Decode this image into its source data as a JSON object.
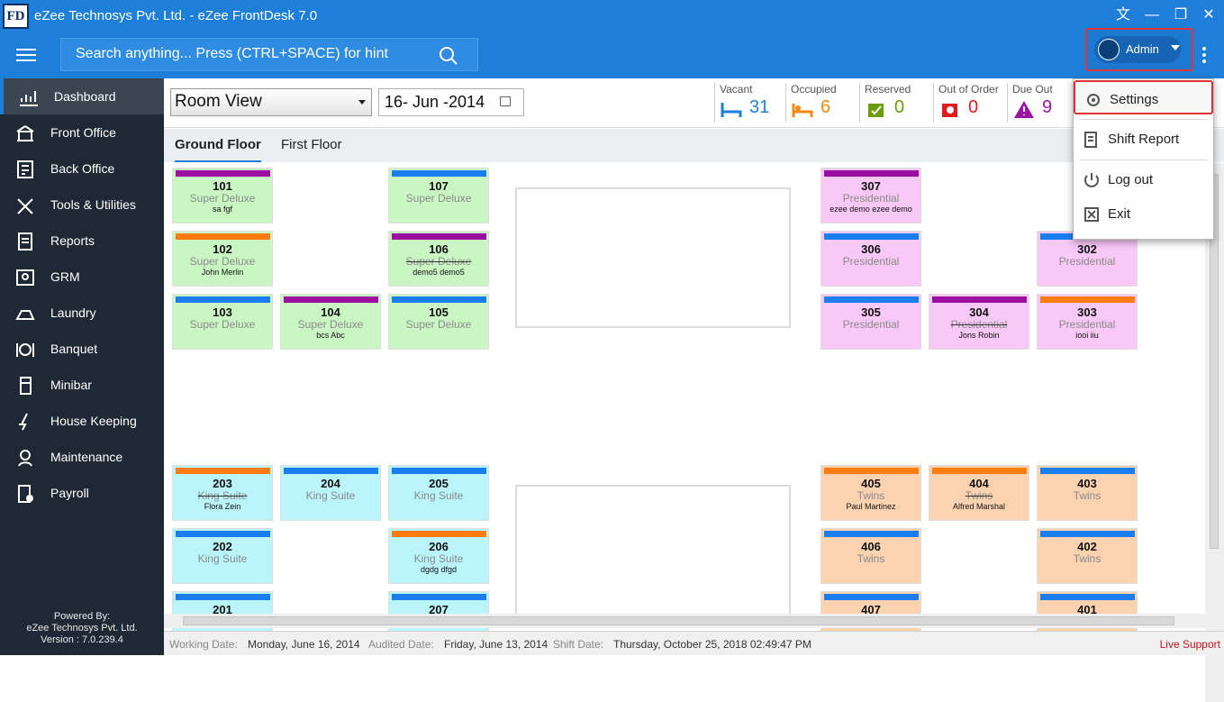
{
  "app": {
    "logo_text": "FD",
    "title": "eZee Technosys Pvt. Ltd. - eZee FrontDesk 7.0",
    "search_placeholder": "Search anything... Press (CTRL+SPACE) for hint",
    "user": "Admin"
  },
  "sidebar": {
    "items": [
      {
        "label": "Dashboard",
        "icon": "dashboard-icon"
      },
      {
        "label": "Front Office",
        "icon": "front-office-icon"
      },
      {
        "label": "Back Office",
        "icon": "back-office-icon"
      },
      {
        "label": "Tools & Utilities",
        "icon": "tools-icon"
      },
      {
        "label": "Reports",
        "icon": "reports-icon"
      },
      {
        "label": "GRM",
        "icon": "grm-icon"
      },
      {
        "label": "Laundry",
        "icon": "laundry-icon"
      },
      {
        "label": "Banquet",
        "icon": "banquet-icon"
      },
      {
        "label": "Minibar",
        "icon": "minibar-icon"
      },
      {
        "label": "House Keeping",
        "icon": "house-keeping-icon"
      },
      {
        "label": "Maintenance",
        "icon": "maintenance-icon"
      },
      {
        "label": "Payroll",
        "icon": "payroll-icon"
      }
    ],
    "powered": [
      "Powered By:",
      "eZee Technosys Pvt. Ltd.",
      "Version : 7.0.239.4"
    ]
  },
  "filters": {
    "view": "Room View",
    "date": "16- Jun -2014"
  },
  "stats": [
    {
      "label": "Vacant",
      "value": "31",
      "color": "#1e7fd9"
    },
    {
      "label": "Occupied",
      "value": "6",
      "color": "#f08a13"
    },
    {
      "label": "Reserved",
      "value": "0",
      "color": "#6a9d08"
    },
    {
      "label": "Out of Order",
      "value": "0",
      "color": "#df1d1d"
    },
    {
      "label": "Due Out",
      "value": "9",
      "color": "#9b15a3"
    }
  ],
  "tabs": [
    "Ground Floor",
    "First Floor"
  ],
  "rooms": [
    {
      "num": "101",
      "type": "Super Deluxe",
      "guest": "sa fgf",
      "bg": "green",
      "bar": "purple"
    },
    {
      "num": "107",
      "type": "Super Deluxe",
      "guest": "",
      "bg": "green",
      "bar": "blue"
    },
    {
      "num": "307",
      "type": "Presidential",
      "guest": "ezee demo ezee demo",
      "bg": "pink",
      "bar": "purple"
    },
    {
      "num": "102",
      "type": "Super Deluxe",
      "guest": "John Merlin",
      "bg": "green",
      "bar": "orange"
    },
    {
      "num": "106",
      "type": "Super Deluxe",
      "guest": "demo5 demo5",
      "bg": "green",
      "bar": "purple"
    },
    {
      "num": "306",
      "type": "Presidential",
      "guest": "",
      "bg": "pink",
      "bar": "blue"
    },
    {
      "num": "302",
      "type": "Presidential",
      "guest": "",
      "bg": "pink",
      "bar": "blue"
    },
    {
      "num": "103",
      "type": "Super Deluxe",
      "guest": "",
      "bg": "green",
      "bar": "blue"
    },
    {
      "num": "104",
      "type": "Super Deluxe",
      "guest": "bcs Abc",
      "bg": "green",
      "bar": "purple"
    },
    {
      "num": "105",
      "type": "Super Deluxe",
      "guest": "",
      "bg": "green",
      "bar": "blue"
    },
    {
      "num": "305",
      "type": "Presidential",
      "guest": "",
      "bg": "pink",
      "bar": "blue"
    },
    {
      "num": "304",
      "type": "Presidential",
      "guest": "Jons Robin",
      "bg": "pink",
      "bar": "purple"
    },
    {
      "num": "303",
      "type": "Presidential",
      "guest": "iooi iiu",
      "bg": "pink",
      "bar": "orange"
    },
    {
      "num": "203",
      "type": "King Suite",
      "guest": "Flora Zein",
      "bg": "cyan",
      "bar": "orange"
    },
    {
      "num": "204",
      "type": "King Suite",
      "guest": "",
      "bg": "cyan",
      "bar": "blue"
    },
    {
      "num": "205",
      "type": "King Suite",
      "guest": "",
      "bg": "cyan",
      "bar": "blue"
    },
    {
      "num": "405",
      "type": "Twins",
      "guest": "Paul Martinez",
      "bg": "peach",
      "bar": "orange"
    },
    {
      "num": "404",
      "type": "Twins",
      "guest": "Alfred Marshal",
      "bg": "peach",
      "bar": "orange"
    },
    {
      "num": "403",
      "type": "Twins",
      "guest": "",
      "bg": "peach",
      "bar": "blue"
    },
    {
      "num": "202",
      "type": "King Suite",
      "guest": "",
      "bg": "cyan",
      "bar": "blue"
    },
    {
      "num": "206",
      "type": "King Suite",
      "guest": "dgdg dfgd",
      "bg": "cyan",
      "bar": "orange"
    },
    {
      "num": "406",
      "type": "Twins",
      "guest": "",
      "bg": "peach",
      "bar": "blue"
    },
    {
      "num": "402",
      "type": "Twins",
      "guest": "",
      "bg": "peach",
      "bar": "blue"
    },
    {
      "num": "201",
      "type": "",
      "guest": "",
      "bg": "cyan",
      "bar": "blue"
    },
    {
      "num": "207",
      "type": "",
      "guest": "",
      "bg": "cyan",
      "bar": "blue"
    },
    {
      "num": "407",
      "type": "",
      "guest": "",
      "bg": "peach",
      "bar": "blue"
    },
    {
      "num": "401",
      "type": "",
      "guest": "",
      "bg": "peach",
      "bar": "blue"
    }
  ],
  "status": {
    "working_label": "Working Date:",
    "working_value": "Monday, June 16, 2014",
    "audited_label": "Audited Date:",
    "audited_value": "Friday, June 13, 2014",
    "shift_label": "Shift Date:",
    "shift_value": "Thursday, October 25, 2018 02:49:47 PM",
    "live_support": "Live Support"
  },
  "menu": {
    "settings": "Settings",
    "shift_report": "Shift Report",
    "log_out": "Log out",
    "exit": "Exit"
  }
}
